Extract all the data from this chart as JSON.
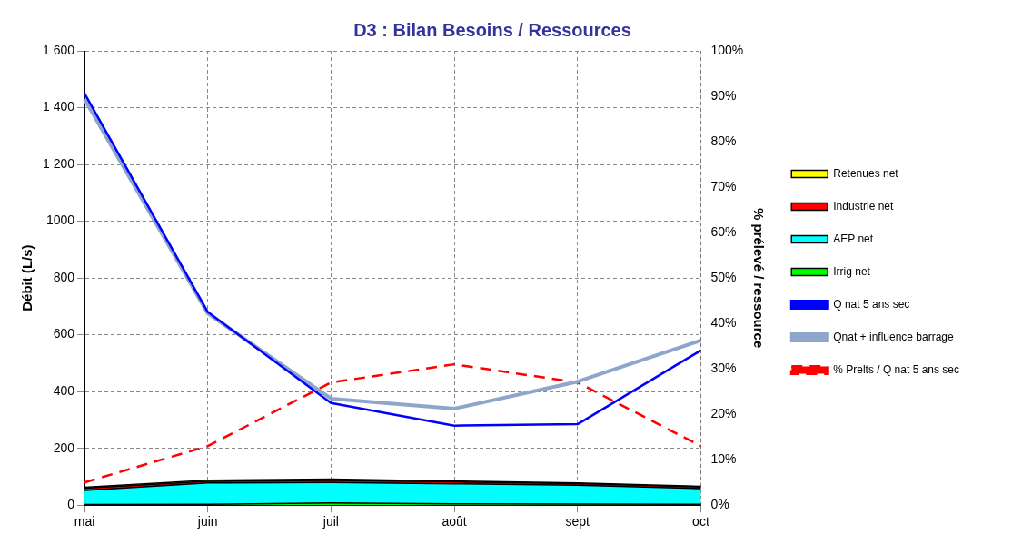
{
  "chart_data": {
    "type": "area",
    "title": "D3 : Bilan Besoins / Ressources",
    "ylabel": "Débit (L/s)",
    "y2label": "% prélevé / ressource",
    "categories": [
      "mai",
      "juin",
      "juil",
      "août",
      "sept",
      "oct"
    ],
    "stacked": true,
    "series": [
      {
        "name": "Irrig net",
        "color": "#00ff00",
        "values": [
          2,
          3,
          8,
          5,
          4,
          3
        ]
      },
      {
        "name": "AEP net",
        "color": "#00ffff",
        "values": [
          50,
          75,
          72,
          70,
          66,
          55
        ]
      },
      {
        "name": "Industrie net",
        "color": "#ff0000",
        "values": [
          8,
          6,
          7,
          7,
          6,
          6
        ]
      },
      {
        "name": "Retenues net",
        "color": "#ffff00",
        "values": [
          3,
          4,
          5,
          3,
          2,
          2
        ]
      },
      {
        "name": "Q nat 5 ans sec",
        "type": "line",
        "color": "#0000ff",
        "values": [
          1450,
          680,
          360,
          280,
          285,
          545
        ]
      },
      {
        "name": "Qnat + influence barrage",
        "type": "line",
        "color": "#8ea6cc",
        "values": [
          1430,
          675,
          375,
          340,
          435,
          580
        ]
      },
      {
        "name": "% Prelts / Q nat 5 ans sec",
        "type": "line",
        "axis": "y2",
        "line_style": "dashed",
        "color": "#ff0000",
        "values": [
          5,
          13,
          27,
          31,
          27,
          13
        ]
      }
    ],
    "ylim": [
      0,
      1600
    ],
    "yticks": [
      0,
      200,
      400,
      600,
      800,
      1000,
      {
        "value": 1200,
        "label": "1 200"
      },
      {
        "value": 1400,
        "label": "1 400"
      },
      {
        "value": 1600,
        "label": "1 600"
      }
    ],
    "y2lim": [
      0,
      100
    ],
    "y2ticks": [
      {
        "value": 0,
        "label": "0%"
      },
      {
        "value": 10,
        "label": "10%"
      },
      {
        "value": 20,
        "label": "20%"
      },
      {
        "value": 30,
        "label": "30%"
      },
      {
        "value": 40,
        "label": "40%"
      },
      {
        "value": 50,
        "label": "50%"
      },
      {
        "value": 60,
        "label": "60%"
      },
      {
        "value": 70,
        "label": "70%"
      },
      {
        "value": 80,
        "label": "80%"
      },
      {
        "value": 90,
        "label": "90%"
      },
      {
        "value": 100,
        "label": "100%"
      }
    ],
    "grid": true,
    "legend": "right",
    "marker": "none"
  }
}
